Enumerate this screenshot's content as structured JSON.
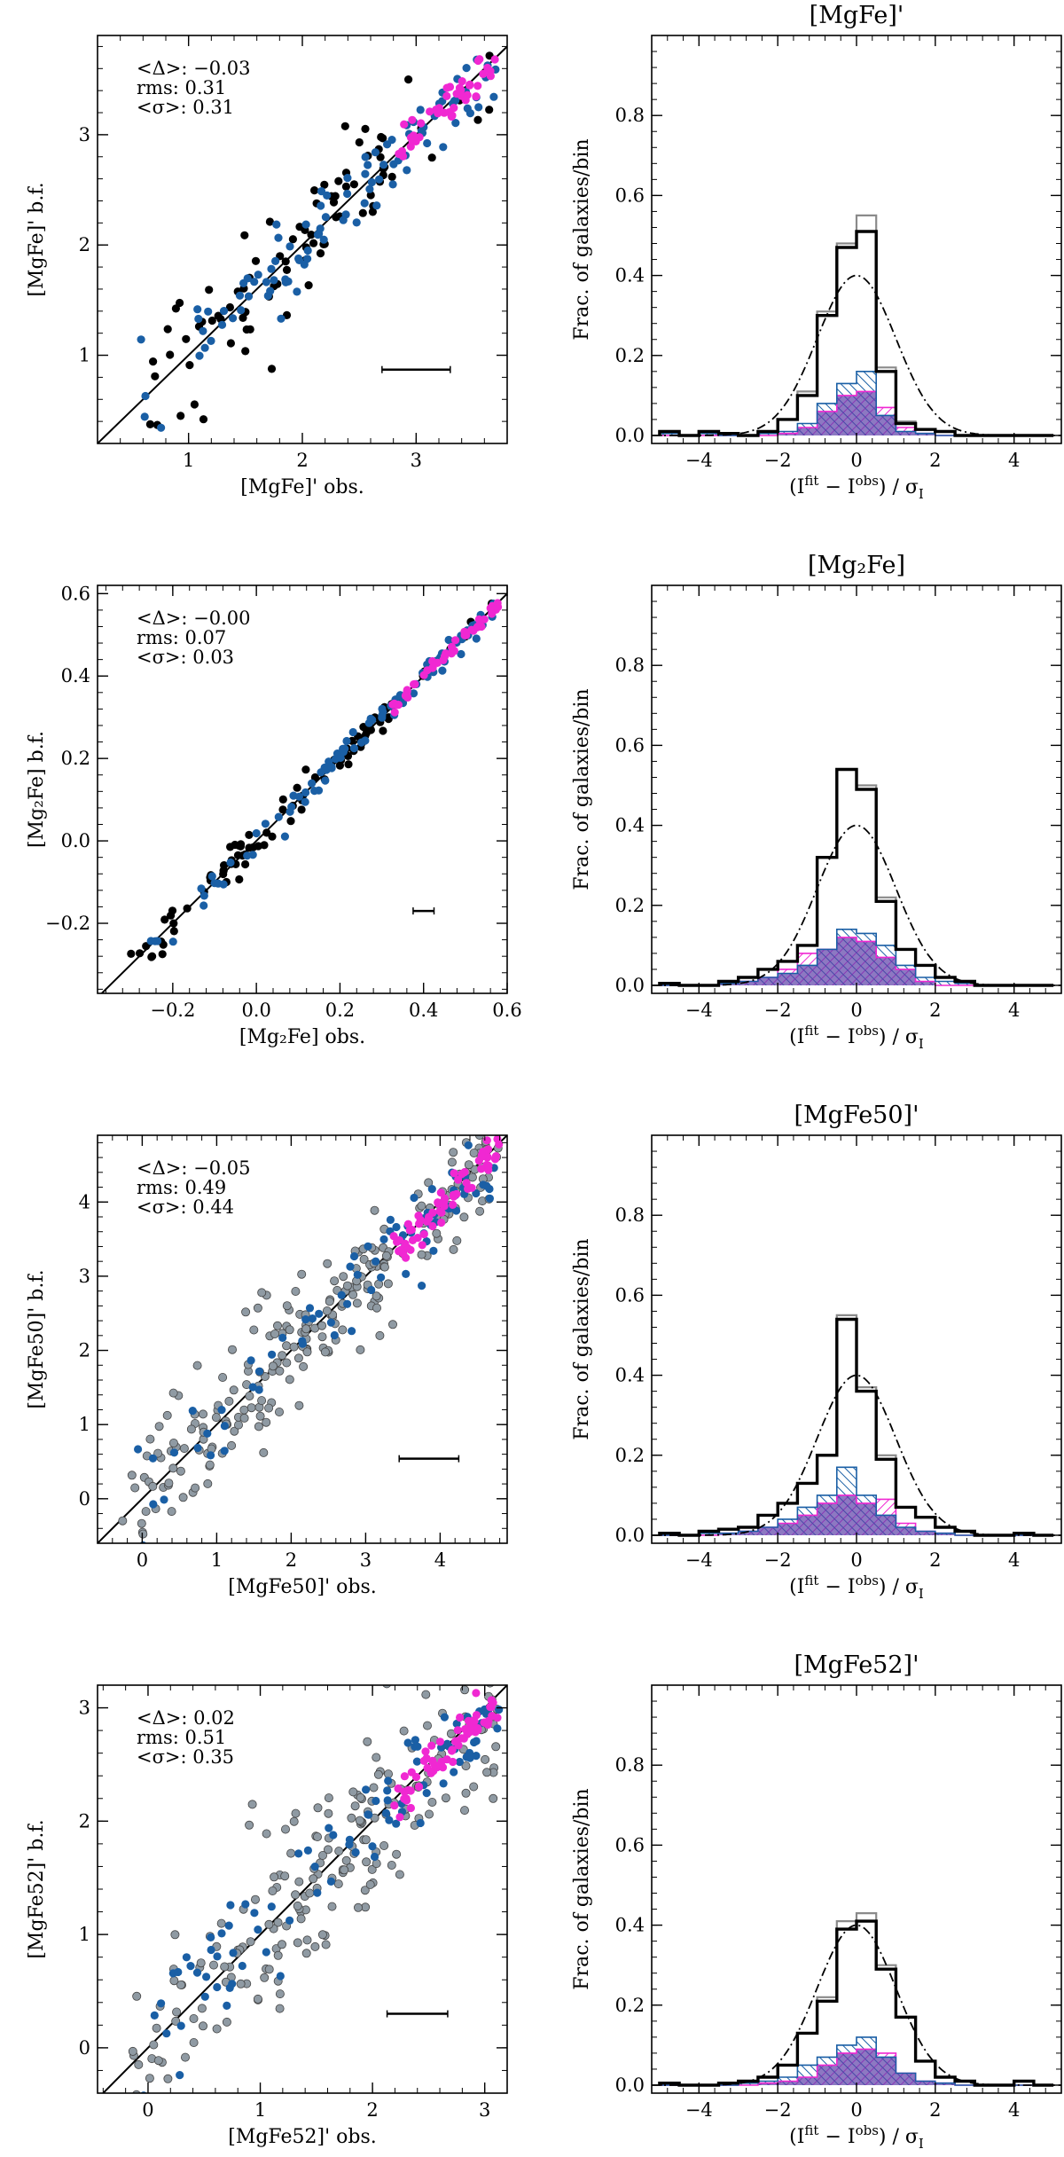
{
  "colors": {
    "black_points": "#000000",
    "blue_points": "#1a5fa5",
    "magenta_points": "#f028d2",
    "gray_points": "#8f9aa3",
    "purple_fill": "#5c3fa8",
    "pink_fill": "#f028d2",
    "blue_fill": "#1a5fa5"
  },
  "chart_data": [
    {
      "type": "scatter",
      "row": 0,
      "col": 0,
      "xlabel": "[MgFe]' obs.",
      "ylabel": "[MgFe]' b.f.",
      "xlim": [
        0.2,
        3.8
      ],
      "ylim": [
        0.2,
        3.9
      ],
      "xticks": [
        1,
        2,
        3
      ],
      "yticks": [
        1,
        2,
        3
      ],
      "stats": [
        "<Δ>: −0.03",
        "rms: 0.31",
        "<σ>: 0.31"
      ],
      "error_bar": {
        "x": 3.0,
        "y": 0.87,
        "half_width": 0.3
      },
      "has_gray": false,
      "n_points": 230,
      "scatter_sigma": 0.3
    },
    {
      "type": "bar",
      "row": 0,
      "col": 1,
      "title": "[MgFe]'",
      "xlabel": "(I^fit − I^obs) / σ_I",
      "ylabel": "Frac. of galaxies/bin",
      "xlim": [
        -5.2,
        5.2
      ],
      "ylim": [
        -0.02,
        1.0
      ],
      "xticks": [
        -4,
        -2,
        0,
        2,
        4
      ],
      "yticks": [
        0.0,
        0.2,
        0.4,
        0.6,
        0.8
      ],
      "bin_edges": [
        -5.0,
        -4.5,
        -4.0,
        -3.5,
        -3.0,
        -2.5,
        -2.0,
        -1.5,
        -1.0,
        -0.5,
        0.0,
        0.5,
        1.0,
        1.5,
        2.0,
        2.5,
        3.0,
        3.5,
        4.0,
        4.5,
        5.0
      ],
      "series": [
        {
          "name": "black",
          "values": [
            0.01,
            0.0,
            0.01,
            0.005,
            0.0,
            0.01,
            0.04,
            0.1,
            0.3,
            0.47,
            0.51,
            0.16,
            0.03,
            0.015,
            0.01,
            0.0,
            0.0,
            0.0,
            0.0,
            0.0
          ]
        },
        {
          "name": "gray",
          "values": [
            0.01,
            0.0,
            0.01,
            0.005,
            0.0,
            0.01,
            0.04,
            0.11,
            0.31,
            0.48,
            0.55,
            0.17,
            0.035,
            0.015,
            0.01,
            0.0,
            0.0,
            0.0,
            0.0,
            0.0
          ]
        },
        {
          "name": "blue",
          "values": [
            0.005,
            0.0,
            0.005,
            0.0,
            0.0,
            0.005,
            0.01,
            0.03,
            0.08,
            0.13,
            0.16,
            0.05,
            0.01,
            0.005,
            0.0,
            0.0,
            0.0,
            0.0,
            0.0,
            0.0
          ]
        },
        {
          "name": "magenta",
          "values": [
            0.0,
            0.0,
            0.0,
            0.0,
            0.0,
            0.0,
            0.005,
            0.02,
            0.06,
            0.1,
            0.11,
            0.07,
            0.02,
            0.005,
            0.0,
            0.0,
            0.0,
            0.0,
            0.0,
            0.0
          ]
        }
      ],
      "gaussian": {
        "mu": 0,
        "sigma": 1,
        "amp": 0.4
      }
    },
    {
      "type": "scatter",
      "row": 1,
      "col": 0,
      "xlabel": "[Mg₂Fe] obs.",
      "ylabel": "[Mg₂Fe] b.f.",
      "xlim": [
        -0.38,
        0.6
      ],
      "ylim": [
        -0.37,
        0.62
      ],
      "xticks": [
        -0.2,
        0.0,
        0.2,
        0.4,
        0.6
      ],
      "yticks": [
        -0.2,
        0.0,
        0.2,
        0.4,
        0.6
      ],
      "stats": [
        "<Δ>: −0.00",
        "rms: 0.07",
        "<σ>: 0.03"
      ],
      "error_bar": {
        "x": 0.4,
        "y": -0.17,
        "half_width": 0.025
      },
      "has_gray": false,
      "n_points": 230,
      "scatter_sigma": 0.025
    },
    {
      "type": "bar",
      "row": 1,
      "col": 1,
      "title": "[Mg₂Fe]",
      "xlabel": "(I^fit − I^obs) / σ_I",
      "ylabel": "Frac. of galaxies/bin",
      "xlim": [
        -5.2,
        5.2
      ],
      "ylim": [
        -0.02,
        1.0
      ],
      "xticks": [
        -4,
        -2,
        0,
        2,
        4
      ],
      "yticks": [
        0.0,
        0.2,
        0.4,
        0.6,
        0.8
      ],
      "bin_edges": [
        -5.0,
        -4.5,
        -4.0,
        -3.5,
        -3.0,
        -2.5,
        -2.0,
        -1.5,
        -1.0,
        -0.5,
        0.0,
        0.5,
        1.0,
        1.5,
        2.0,
        2.5,
        3.0,
        3.5,
        4.0,
        4.5,
        5.0
      ],
      "series": [
        {
          "name": "black",
          "values": [
            0.005,
            0.0,
            0.0,
            0.01,
            0.02,
            0.04,
            0.06,
            0.1,
            0.32,
            0.54,
            0.49,
            0.21,
            0.09,
            0.05,
            0.02,
            0.01,
            0.0,
            0.0,
            0.0,
            0.0
          ]
        },
        {
          "name": "gray",
          "values": [
            0.005,
            0.0,
            0.0,
            0.01,
            0.02,
            0.04,
            0.06,
            0.1,
            0.32,
            0.54,
            0.5,
            0.22,
            0.09,
            0.05,
            0.02,
            0.01,
            0.0,
            0.0,
            0.0,
            0.0
          ]
        },
        {
          "name": "blue",
          "values": [
            0.0,
            0.0,
            0.0,
            0.005,
            0.01,
            0.02,
            0.03,
            0.05,
            0.09,
            0.14,
            0.13,
            0.1,
            0.05,
            0.02,
            0.01,
            0.005,
            0.0,
            0.0,
            0.0,
            0.0
          ]
        },
        {
          "name": "magenta",
          "values": [
            0.0,
            0.0,
            0.0,
            0.005,
            0.01,
            0.02,
            0.04,
            0.08,
            0.09,
            0.12,
            0.11,
            0.07,
            0.04,
            0.01,
            0.0,
            0.0,
            0.0,
            0.0,
            0.0,
            0.0
          ]
        }
      ],
      "gaussian": {
        "mu": 0,
        "sigma": 1,
        "amp": 0.4
      }
    },
    {
      "type": "scatter",
      "row": 2,
      "col": 0,
      "xlabel": "[MgFe50]' obs.",
      "ylabel": "[MgFe50]' b.f.",
      "xlim": [
        -0.6,
        4.9
      ],
      "ylim": [
        -0.6,
        4.9
      ],
      "xticks": [
        0,
        1,
        2,
        3,
        4
      ],
      "yticks": [
        0,
        1,
        2,
        3,
        4
      ],
      "stats": [
        "<Δ>: −0.05",
        "rms: 0.49",
        "<σ>: 0.44"
      ],
      "error_bar": {
        "x": 3.85,
        "y": 0.54,
        "half_width": 0.4
      },
      "has_gray": true,
      "n_points": 380,
      "scatter_sigma": 0.45
    },
    {
      "type": "bar",
      "row": 2,
      "col": 1,
      "title": "[MgFe50]'",
      "xlabel": "(I^fit − I^obs) / σ_I",
      "ylabel": "Frac. of galaxies/bin",
      "xlim": [
        -5.2,
        5.2
      ],
      "ylim": [
        -0.02,
        1.0
      ],
      "xticks": [
        -4,
        -2,
        0,
        2,
        4
      ],
      "yticks": [
        0.0,
        0.2,
        0.4,
        0.6,
        0.8
      ],
      "bin_edges": [
        -5.0,
        -4.5,
        -4.0,
        -3.5,
        -3.0,
        -2.5,
        -2.0,
        -1.5,
        -1.0,
        -0.5,
        0.0,
        0.5,
        1.0,
        1.5,
        2.0,
        2.5,
        3.0,
        3.5,
        4.0,
        4.5,
        5.0
      ],
      "series": [
        {
          "name": "black",
          "values": [
            0.005,
            0.0,
            0.01,
            0.015,
            0.02,
            0.05,
            0.08,
            0.13,
            0.2,
            0.54,
            0.36,
            0.19,
            0.07,
            0.045,
            0.02,
            0.01,
            0.0,
            0.0,
            0.005,
            0.0
          ]
        },
        {
          "name": "gray",
          "values": [
            0.005,
            0.0,
            0.01,
            0.015,
            0.02,
            0.05,
            0.08,
            0.13,
            0.2,
            0.55,
            0.37,
            0.2,
            0.07,
            0.045,
            0.02,
            0.01,
            0.0,
            0.0,
            0.005,
            0.0
          ]
        },
        {
          "name": "blue",
          "values": [
            0.0,
            0.0,
            0.005,
            0.005,
            0.01,
            0.02,
            0.04,
            0.07,
            0.1,
            0.17,
            0.1,
            0.05,
            0.02,
            0.01,
            0.005,
            0.0,
            0.0,
            0.0,
            0.0,
            0.0
          ]
        },
        {
          "name": "magenta",
          "values": [
            0.0,
            0.0,
            0.0,
            0.005,
            0.01,
            0.02,
            0.03,
            0.05,
            0.08,
            0.1,
            0.08,
            0.09,
            0.03,
            0.01,
            0.005,
            0.0,
            0.0,
            0.0,
            0.0,
            0.0
          ]
        }
      ],
      "gaussian": {
        "mu": 0,
        "sigma": 1,
        "amp": 0.4
      }
    },
    {
      "type": "scatter",
      "row": 3,
      "col": 0,
      "xlabel": "[MgFe52]' obs.",
      "ylabel": "[MgFe52]' b.f.",
      "xlim": [
        -0.45,
        3.2
      ],
      "ylim": [
        -0.4,
        3.2
      ],
      "xticks": [
        0,
        1,
        2,
        3
      ],
      "yticks": [
        0,
        1,
        2,
        3
      ],
      "stats": [
        "<Δ>: 0.02",
        "rms: 0.51",
        "<σ>: 0.35"
      ],
      "error_bar": {
        "x": 2.4,
        "y": 0.3,
        "half_width": 0.27
      },
      "has_gray": true,
      "n_points": 360,
      "scatter_sigma": 0.4
    },
    {
      "type": "bar",
      "row": 3,
      "col": 1,
      "title": "[MgFe52]'",
      "xlabel": "(I^fit − I^obs) / σ_I",
      "ylabel": "Frac. of galaxies/bin",
      "xlim": [
        -5.2,
        5.2
      ],
      "ylim": [
        -0.02,
        1.0
      ],
      "xticks": [
        -4,
        -2,
        0,
        2,
        4
      ],
      "yticks": [
        0.0,
        0.2,
        0.4,
        0.6,
        0.8
      ],
      "bin_edges": [
        -5.0,
        -4.5,
        -4.0,
        -3.5,
        -3.0,
        -2.5,
        -2.0,
        -1.5,
        -1.0,
        -0.5,
        0.0,
        0.5,
        1.0,
        1.5,
        2.0,
        2.5,
        3.0,
        3.5,
        4.0,
        4.5,
        5.0
      ],
      "series": [
        {
          "name": "black",
          "values": [
            0.005,
            0.0,
            0.0,
            0.005,
            0.01,
            0.02,
            0.05,
            0.13,
            0.21,
            0.39,
            0.41,
            0.29,
            0.17,
            0.06,
            0.02,
            0.01,
            0.0,
            0.0,
            0.01,
            0.0
          ]
        },
        {
          "name": "gray",
          "values": [
            0.005,
            0.0,
            0.0,
            0.005,
            0.01,
            0.02,
            0.05,
            0.13,
            0.22,
            0.41,
            0.43,
            0.3,
            0.17,
            0.06,
            0.02,
            0.01,
            0.0,
            0.0,
            0.01,
            0.0
          ]
        },
        {
          "name": "blue",
          "values": [
            0.0,
            0.0,
            0.0,
            0.0,
            0.005,
            0.01,
            0.02,
            0.05,
            0.07,
            0.1,
            0.12,
            0.07,
            0.03,
            0.01,
            0.005,
            0.0,
            0.0,
            0.0,
            0.0,
            0.0
          ]
        },
        {
          "name": "magenta",
          "values": [
            0.0,
            0.0,
            0.0,
            0.0,
            0.0,
            0.005,
            0.01,
            0.02,
            0.05,
            0.08,
            0.09,
            0.08,
            0.03,
            0.01,
            0.005,
            0.0,
            0.0,
            0.0,
            0.0,
            0.0
          ]
        }
      ],
      "gaussian": {
        "mu": 0,
        "sigma": 1,
        "amp": 0.4
      }
    }
  ]
}
